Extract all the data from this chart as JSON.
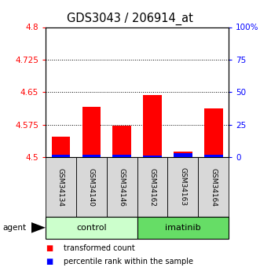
{
  "title": "GDS3043 / 206914_at",
  "categories": [
    "GSM34134",
    "GSM34140",
    "GSM34146",
    "GSM34162",
    "GSM34163",
    "GSM34164"
  ],
  "red_values": [
    4.547,
    4.617,
    4.573,
    4.643,
    4.513,
    4.613
  ],
  "blue_values": [
    0.02,
    0.018,
    0.016,
    0.015,
    0.03,
    0.017
  ],
  "ylim_left": [
    4.5,
    4.8
  ],
  "ylim_right": [
    0,
    1.0
  ],
  "yticks_left": [
    4.5,
    4.575,
    4.65,
    4.725,
    4.8
  ],
  "ytick_labels_left": [
    "4.5",
    "4.575",
    "4.65",
    "4.725",
    "4.8"
  ],
  "yticks_right": [
    0.0,
    0.25,
    0.5,
    0.75,
    1.0
  ],
  "ytick_labels_right": [
    "0",
    "25",
    "50",
    "75",
    "100%"
  ],
  "grid_yticks": [
    4.575,
    4.65,
    4.725
  ],
  "group_labels": [
    "control",
    "imatinib"
  ],
  "agent_label": "agent",
  "legend": [
    "transformed count",
    "percentile rank within the sample"
  ],
  "bar_width": 0.6,
  "control_color": "#ccffcc",
  "imatinib_color": "#66dd66",
  "sample_box_color": "#d8d8d8",
  "title_fontsize": 10.5,
  "tick_fontsize": 7.5,
  "group_fontsize": 8,
  "legend_fontsize": 7
}
